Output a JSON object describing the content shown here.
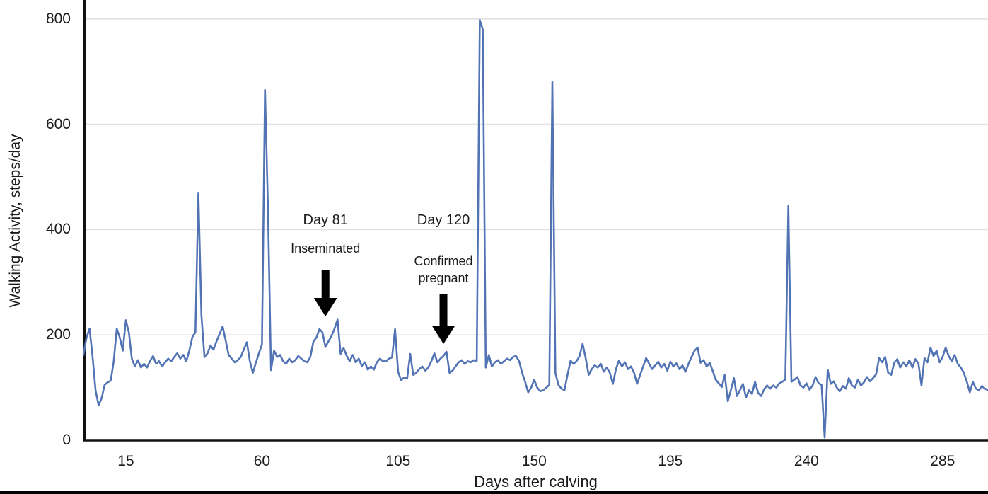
{
  "chart_data": {
    "type": "line",
    "title": "",
    "xlabel": "Days after calving",
    "ylabel": "Walking Activity, steps/day",
    "x_ticks": [
      15,
      60,
      105,
      150,
      195,
      240,
      285
    ],
    "y_ticks": [
      0,
      200,
      400,
      600,
      800
    ],
    "xlim": [
      1,
      300
    ],
    "ylim": [
      0,
      836
    ],
    "grid": "horizontal",
    "legend": "none",
    "line_color": "#5374B4",
    "grid_color": "#E2E2E2",
    "axis_color": "#111111",
    "annotation_arrow_color": "#000000",
    "series": [
      {
        "name": "walking-activity-steps-per-day",
        "x_start": 1,
        "x_step": 1,
        "values": [
          162,
          195,
          212,
          160,
          95,
          66,
          80,
          105,
          110,
          113,
          150,
          212,
          195,
          170,
          228,
          205,
          155,
          140,
          152,
          138,
          145,
          138,
          150,
          160,
          145,
          150,
          140,
          148,
          155,
          150,
          158,
          165,
          155,
          162,
          150,
          170,
          196,
          205,
          470,
          237,
          158,
          165,
          180,
          172,
          188,
          202,
          216,
          190,
          162,
          155,
          148,
          152,
          158,
          172,
          186,
          150,
          128,
          147,
          165,
          182,
          665,
          440,
          133,
          170,
          158,
          162,
          150,
          145,
          155,
          148,
          152,
          160,
          155,
          150,
          148,
          158,
          187,
          195,
          211,
          205,
          177,
          188,
          198,
          212,
          229,
          164,
          175,
          160,
          150,
          162,
          148,
          155,
          141,
          148,
          134,
          140,
          134,
          148,
          155,
          150,
          150,
          155,
          157,
          211,
          130,
          114,
          119,
          117,
          164,
          124,
          128,
          135,
          140,
          132,
          138,
          150,
          165,
          148,
          155,
          160,
          168,
          128,
          132,
          140,
          148,
          152,
          145,
          150,
          148,
          152,
          150,
          798,
          780,
          138,
          162,
          140,
          148,
          152,
          145,
          150,
          155,
          152,
          158,
          160,
          150,
          128,
          111,
          91,
          100,
          115,
          100,
          93,
          95,
          100,
          105,
          680,
          128,
          105,
          98,
          95,
          124,
          151,
          145,
          150,
          160,
          183,
          156,
          124,
          135,
          142,
          138,
          145,
          130,
          138,
          128,
          107,
          135,
          151,
          140,
          148,
          135,
          140,
          128,
          107,
          124,
          140,
          156,
          145,
          135,
          142,
          149,
          138,
          145,
          132,
          149,
          140,
          146,
          135,
          142,
          130,
          145,
          158,
          170,
          176,
          147,
          152,
          140,
          147,
          132,
          115,
          108,
          101,
          124,
          74,
          95,
          118,
          84,
          95,
          107,
          81,
          95,
          88,
          111,
          90,
          84,
          97,
          104,
          98,
          104,
          100,
          108,
          111,
          115,
          445,
          111,
          115,
          120,
          104,
          100,
          108,
          96,
          104,
          120,
          108,
          105,
          5,
          134,
          107,
          112,
          100,
          93,
          103,
          98,
          118,
          104,
          100,
          115,
          104,
          110,
          120,
          112,
          118,
          125,
          156,
          148,
          158,
          128,
          124,
          147,
          154,
          138,
          148,
          140,
          152,
          138,
          154,
          146,
          104,
          156,
          148,
          176,
          160,
          170,
          148,
          158,
          176,
          160,
          150,
          162,
          145,
          138,
          128,
          111,
          91,
          111,
          98,
          95,
          103,
          98,
          95
        ]
      }
    ],
    "annotations": [
      {
        "day": 81,
        "lines": [
          "Day 81",
          "Inseminated"
        ]
      },
      {
        "day": 120,
        "lines": [
          "Day 120",
          "Confirmed",
          "pregnant"
        ]
      }
    ]
  }
}
